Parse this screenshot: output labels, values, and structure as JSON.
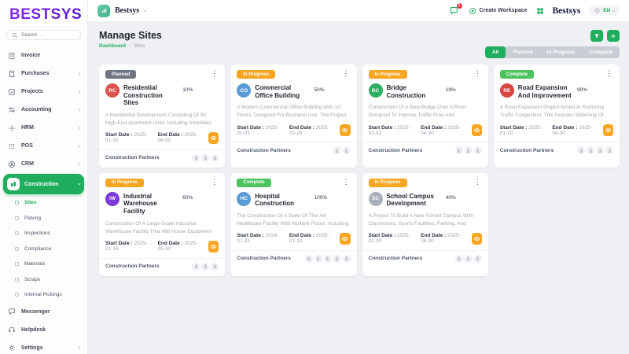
{
  "sidebar": {
    "logo": "BESTSYS",
    "search_placeholder": "Search ...",
    "items": [
      {
        "label": "Invoice",
        "icon": "invoice-icon",
        "has_chevron": false
      },
      {
        "label": "Purchases",
        "icon": "purchases-icon",
        "has_chevron": true
      },
      {
        "label": "Projects",
        "icon": "projects-icon",
        "has_chevron": true
      },
      {
        "label": "Accounting",
        "icon": "accounting-icon",
        "has_chevron": true
      },
      {
        "label": "HRM",
        "icon": "hrm-icon",
        "has_chevron": true
      },
      {
        "label": "POS",
        "icon": "pos-icon",
        "has_chevron": true
      },
      {
        "label": "CRM",
        "icon": "crm-icon",
        "has_chevron": true
      }
    ],
    "construction": {
      "label": "Construction"
    },
    "subitems": [
      {
        "label": "Sites",
        "active": true
      },
      {
        "label": "Picking",
        "active": false
      },
      {
        "label": "Inspections",
        "active": false
      },
      {
        "label": "Compliance",
        "active": false
      },
      {
        "label": "Materials",
        "active": false
      },
      {
        "label": "Scraps",
        "active": false
      },
      {
        "label": "Internal Pickings",
        "active": false
      }
    ],
    "bottom_items": [
      {
        "label": "Messenger",
        "icon": "messenger-icon",
        "has_chevron": false
      },
      {
        "label": "Helpdesk",
        "icon": "helpdesk-icon",
        "has_chevron": false
      },
      {
        "label": "Settings",
        "icon": "settings-icon",
        "has_chevron": true
      }
    ]
  },
  "topbar": {
    "workspace_name": "Bestsys",
    "notification_count": "1",
    "create_workspace_label": "Create Workspace",
    "brand": "Bestsys",
    "language": "EN"
  },
  "page": {
    "title": "Manage Sites",
    "breadcrumb": {
      "home": "Dashboard",
      "separator": "›",
      "current": "Sites"
    },
    "filters": [
      {
        "label": "All",
        "active": true
      },
      {
        "label": "Planned",
        "active": false
      },
      {
        "label": "In Progress",
        "active": false
      },
      {
        "label": "Complete",
        "active": false
      }
    ]
  },
  "labels": {
    "start": "Start Date :",
    "end": "End Date :",
    "partners": "Construction Partners",
    "kebab": "⋮"
  },
  "colors": {
    "primary_green": "#1fae5e",
    "progress_bar": "#453db0",
    "badge_planned": "#6e7781",
    "badge_in_progress": "#f6a623",
    "badge_complete": "#4cc35e",
    "eye_button": "#f6a623"
  },
  "cards": [
    {
      "status": "Planned",
      "status_class": "planned",
      "initials": "RC",
      "avatar_color": "#d9534f",
      "title": "Residential Construction Sites",
      "progress": 10,
      "progress_label": "10%",
      "description": "A Residential Development Consisting Of 50 High-End Apartment Units, Including Amenities Such As A Fitness...",
      "start_date": "2025-01-30",
      "end_date": "2025-06-30",
      "partners": 3
    },
    {
      "status": "In Progress",
      "status_class": "progress",
      "initials": "CO",
      "avatar_color": "#5b9bd5",
      "title": "Commercial Office Building",
      "progress": 50,
      "progress_label": "50%",
      "description": "A Modern Commercial Office Building With 10 Floors, Designed For Business Use. The Project Involves The...",
      "start_date": "2025-01-01",
      "end_date": "2025-02-28",
      "partners": 2
    },
    {
      "status": "In Progress",
      "status_class": "progress",
      "initials": "BC",
      "avatar_color": "#2eae60",
      "title": "Bridge Construction",
      "progress": 19,
      "progress_label": "19%",
      "description": "Construction Of A New Bridge Over A River, Designed To Improve Traffic Flow And Accessibility In The Area. The...",
      "start_date": "2025-02-01",
      "end_date": "2025-04-30",
      "partners": 3
    },
    {
      "status": "Complete",
      "status_class": "complete",
      "initials": "RE",
      "avatar_color": "#d9453f",
      "title": "Road Expansion And Improvement",
      "progress": 90,
      "progress_label": "90%",
      "description": "A Road Expansion Project Aimed At Reducing Traffic Congestion. This Includes Widening Of The Main Road,...",
      "start_date": "2025-01-10",
      "end_date": "2025-04-30",
      "partners": 4
    },
    {
      "status": "In Progress",
      "status_class": "progress",
      "initials": "IW",
      "avatar_color": "#7a3bd6",
      "title": "Industrial Warehouse Facility",
      "progress": 60,
      "progress_label": "60%",
      "description": "Construction Of A Large-Scale Industrial Warehouse Facility That Will House Equipment And Materials For...",
      "start_date": "2025-01-16",
      "end_date": "2025-05-30",
      "partners": 3
    },
    {
      "status": "Complete",
      "status_class": "complete",
      "initials": "HC",
      "avatar_color": "#5b9bd5",
      "title": "Hospital Construction",
      "progress": 100,
      "progress_label": "100%",
      "description": "The Construction Of A State-Of-The-Art Healthcare Facility With Multiple Floors, Including Patient Rooms, Operatin...",
      "start_date": "2024-07-31",
      "end_date": "2025-01-10",
      "partners": 5
    },
    {
      "status": "In Progress",
      "status_class": "progress",
      "initials": "SC",
      "avatar_color": "#a9b0ba",
      "title": "School Campus Development",
      "progress": 40,
      "progress_label": "40%",
      "description": "A Project To Build A New School Campus With Classrooms, Sports Facilities, Parking, And Outdoor...",
      "start_date": "2025-01-30",
      "end_date": "2025-06-30",
      "partners": 3
    }
  ]
}
